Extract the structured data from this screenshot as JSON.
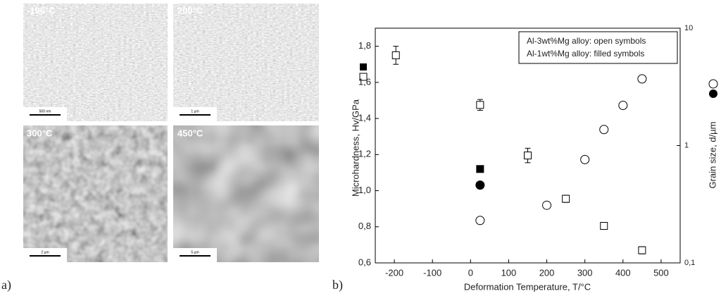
{
  "figure": {
    "panel_a_label": "a)",
    "panel_b_label": "b)",
    "micrographs": [
      {
        "label": "-196°C",
        "scale": "500 nm"
      },
      {
        "label": "200°C",
        "scale": "1 µm"
      },
      {
        "label": "300°C",
        "scale": "2 µm"
      },
      {
        "label": "450°C",
        "scale": "5 µm"
      }
    ]
  },
  "chart_data": {
    "type": "scatter",
    "xlabel": "Deformation Temperature, T/°C",
    "ylabel": "Microhardness, Hv/GPa",
    "y2label": "Grain size, d/µm",
    "annotations": [
      "Al-3wt%Mg alloy: open symbols",
      "Al-1wt%Mg alloy: filled symbols"
    ],
    "xlim": [
      -250,
      550
    ],
    "xticks": [
      -200,
      -100,
      0,
      100,
      200,
      300,
      400,
      500
    ],
    "ylim": [
      0.6,
      1.9
    ],
    "yticks": [
      {
        "value": 0.6,
        "label": "0,6"
      },
      {
        "value": 0.8,
        "label": "0,8"
      },
      {
        "value": 1.0,
        "label": "1,0"
      },
      {
        "value": 1.2,
        "label": "1,2"
      },
      {
        "value": 1.4,
        "label": "1,4"
      },
      {
        "value": 1.6,
        "label": "1,6"
      },
      {
        "value": 1.8,
        "label": "1,8"
      }
    ],
    "y2lim": [
      0.1,
      10
    ],
    "y2ticks": [
      {
        "value": 0.1,
        "label": "0,1"
      },
      1,
      10
    ],
    "y2log": true,
    "series": [
      {
        "marker": "square",
        "filled": false,
        "color": "#000000",
        "x": [
          -196,
          25,
          150,
          250,
          350,
          450
        ],
        "values": [
          1.75,
          1.475,
          1.195,
          0.955,
          0.805,
          0.67
        ],
        "errors": [
          0.05,
          0.03,
          0.04,
          0.02,
          0,
          0.02
        ]
      },
      {
        "marker": "square",
        "filled": true,
        "color": "#000000",
        "x": [
          25
        ],
        "values": [
          1.12
        ]
      },
      {
        "marker": "circle",
        "filled": false,
        "color": "#000000",
        "axis": "y2",
        "x": [
          25,
          200,
          300,
          350,
          400,
          450
        ],
        "values": [
          0.23,
          0.31,
          0.76,
          1.37,
          2.2,
          3.7
        ]
      },
      {
        "marker": "circle",
        "filled": true,
        "color": "#000000",
        "axis": "y2",
        "x": [
          25
        ],
        "values": [
          0.46
        ]
      }
    ]
  }
}
